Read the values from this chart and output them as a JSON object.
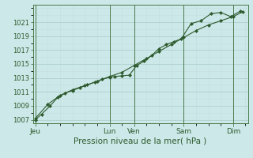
{
  "title": "",
  "xlabel": "Pression niveau de la mer( hPa )",
  "bg_color": "#cce8e8",
  "grid_color_major": "#b0d0d0",
  "grid_color_minor": "#c4dede",
  "line_color": "#2d5a2d",
  "marker_color": "#2d5a2d",
  "tick_label_color": "#2d5a2d",
  "border_color": "#4a7a4a",
  "xlabel_color": "#2d5a2d",
  "ylim": [
    1006.5,
    1023.5
  ],
  "yticks": [
    1007,
    1009,
    1011,
    1013,
    1015,
    1017,
    1019,
    1021
  ],
  "xtick_labels": [
    "Jeu",
    "Lun",
    "Ven",
    "Sam",
    "Dim"
  ],
  "xtick_positions": [
    0.0,
    3.0,
    4.0,
    6.0,
    8.0
  ],
  "xlim": [
    -0.1,
    8.6
  ],
  "series1_x": [
    0.0,
    0.25,
    0.6,
    0.9,
    1.2,
    1.5,
    1.8,
    2.1,
    2.4,
    2.7,
    3.0,
    3.2,
    3.5,
    3.8,
    4.1,
    4.4,
    4.7,
    5.0,
    5.3,
    5.6,
    5.9,
    6.3,
    6.7,
    7.1,
    7.5,
    7.9,
    8.3
  ],
  "series1_y": [
    1007.0,
    1007.8,
    1009.0,
    1010.2,
    1010.8,
    1011.2,
    1011.6,
    1012.0,
    1012.4,
    1012.8,
    1013.1,
    1013.2,
    1013.3,
    1013.4,
    1014.8,
    1015.4,
    1016.2,
    1017.2,
    1017.8,
    1018.2,
    1018.6,
    1020.8,
    1021.2,
    1022.2,
    1022.4,
    1021.8,
    1022.6
  ],
  "series2_x": [
    0.0,
    0.5,
    1.0,
    1.5,
    2.0,
    2.5,
    3.0,
    3.5,
    4.0,
    4.5,
    5.0,
    5.5,
    6.0,
    6.5,
    7.0,
    7.5,
    8.0,
    8.4
  ],
  "series2_y": [
    1007.2,
    1009.2,
    1010.5,
    1011.3,
    1011.9,
    1012.5,
    1013.2,
    1013.8,
    1014.8,
    1015.8,
    1016.8,
    1017.8,
    1018.8,
    1019.8,
    1020.6,
    1021.2,
    1021.8,
    1022.5
  ],
  "xlabel_fontsize": 7.5,
  "ytick_fontsize": 6.0,
  "xtick_fontsize": 6.5
}
